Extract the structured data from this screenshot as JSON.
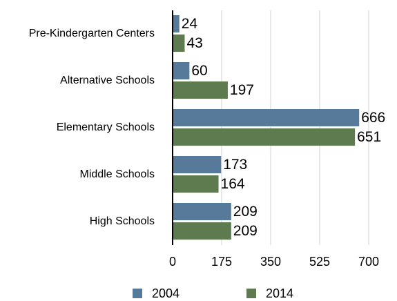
{
  "chart_data": {
    "type": "bar",
    "orientation": "horizontal",
    "categories": [
      "Pre-Kindergarten Centers",
      "Alternative Schools",
      "Elementary Schools",
      "Middle Schools",
      "High Schools"
    ],
    "series": [
      {
        "name": "2004",
        "color": "#587a9a",
        "values": [
          24,
          60,
          666,
          173,
          209
        ]
      },
      {
        "name": "2014",
        "color": "#5e7b50",
        "values": [
          43,
          197,
          651,
          164,
          209
        ]
      }
    ],
    "xlim": [
      0,
      700
    ],
    "xticks": [
      0,
      175,
      350,
      525,
      700
    ],
    "grid": true,
    "legend": "bottom"
  }
}
